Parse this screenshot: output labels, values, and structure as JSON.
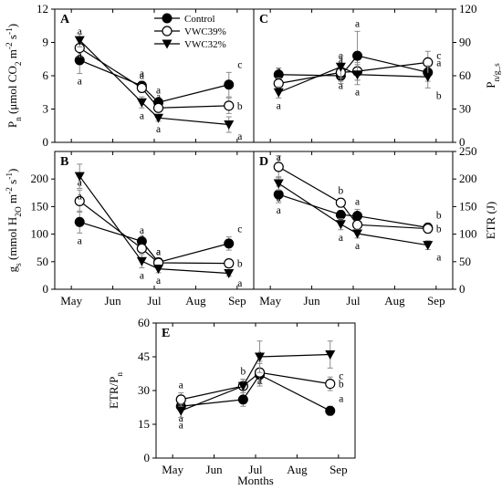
{
  "xlabel": "Months",
  "legend": {
    "entries": [
      {
        "name": "Control",
        "marker": "filled-circle"
      },
      {
        "name": "VWC39%",
        "marker": "open-circle"
      },
      {
        "name": "VWC32%",
        "marker": "filled-triangle-down"
      }
    ]
  },
  "chart_data": [
    {
      "id": "A",
      "type": "line",
      "panel_label": "A",
      "x": [
        "May",
        "Jul",
        "Jul",
        "Sep"
      ],
      "x_ticks": [
        "May",
        "Jun",
        "Jul",
        "Aug",
        "Sep"
      ],
      "x_values": [
        5.2,
        6.7,
        7.1,
        8.8
      ],
      "ylabel_left": "P_n (μmol CO_2 m^-2 s^-1)",
      "ylim": [
        0,
        12
      ],
      "yticks": [
        0,
        3,
        6,
        9,
        12
      ],
      "series": [
        {
          "name": "Control",
          "values": [
            7.4,
            5.1,
            3.6,
            5.2
          ],
          "err": [
            1.2,
            0.4,
            0.4,
            1.1
          ],
          "letters": [
            "a",
            "a",
            "a",
            "c"
          ]
        },
        {
          "name": "VWC39%",
          "values": [
            8.5,
            4.9,
            3.1,
            3.3
          ],
          "err": [
            0.8,
            0.4,
            0.3,
            0.7
          ],
          "letters": [
            "a",
            "a",
            "a",
            "b"
          ]
        },
        {
          "name": "VWC32%",
          "values": [
            9.2,
            3.6,
            2.2,
            1.6
          ],
          "err": [
            0.6,
            0.5,
            0.3,
            0.7
          ],
          "letters": [
            "a",
            "a",
            "a",
            "a"
          ]
        }
      ]
    },
    {
      "id": "C",
      "type": "line",
      "panel_label": "C",
      "x_ticks": [
        "May",
        "Jun",
        "Jul",
        "Aug",
        "Sep"
      ],
      "x_values": [
        5.2,
        6.7,
        7.1,
        8.8
      ],
      "ylabel_right": "P_n/g_s",
      "ylim": [
        0,
        120
      ],
      "yticks": [
        0,
        30,
        60,
        90,
        120
      ],
      "series": [
        {
          "name": "Control",
          "values": [
            61,
            60,
            78,
            63
          ],
          "err": [
            6,
            7,
            22,
            8
          ],
          "letters": [
            "a",
            "a",
            "a",
            "c"
          ]
        },
        {
          "name": "VWC39%",
          "values": [
            53,
            63,
            64,
            72
          ],
          "err": [
            5,
            8,
            8,
            10
          ],
          "letters": [
            "a",
            "a",
            "a",
            "a"
          ]
        },
        {
          "name": "VWC32%",
          "values": [
            45,
            68,
            61,
            59
          ],
          "err": [
            5,
            10,
            9,
            10
          ],
          "letters": [
            "a",
            "a",
            "a",
            "b"
          ]
        }
      ]
    },
    {
      "id": "B",
      "type": "line",
      "panel_label": "B",
      "x_ticks": [
        "May",
        "Jun",
        "Jul",
        "Aug",
        "Sep"
      ],
      "x_values": [
        5.2,
        6.7,
        7.1,
        8.8
      ],
      "ylabel_left": "g_s (mmol H_2O m^-2 s^-1)",
      "ylim": [
        0,
        250
      ],
      "yticks": [
        0,
        50,
        100,
        150,
        200
      ],
      "series": [
        {
          "name": "Control",
          "values": [
            122,
            87,
            49,
            83
          ],
          "err": [
            20,
            6,
            5,
            12
          ],
          "letters": [
            "a",
            "a",
            "a",
            "c"
          ]
        },
        {
          "name": "VWC39%",
          "values": [
            160,
            74,
            48,
            47
          ],
          "err": [
            20,
            7,
            6,
            6
          ],
          "letters": [
            "a",
            "a",
            "a",
            "b"
          ]
        },
        {
          "name": "VWC32%",
          "values": [
            205,
            51,
            37,
            29
          ],
          "err": [
            22,
            12,
            7,
            5
          ],
          "letters": [
            "a",
            "a",
            "a",
            "a"
          ]
        }
      ]
    },
    {
      "id": "D",
      "type": "line",
      "panel_label": "D",
      "x_ticks": [
        "May",
        "Jun",
        "Jul",
        "Aug",
        "Sep"
      ],
      "x_values": [
        5.2,
        6.7,
        7.1,
        8.8
      ],
      "ylabel_right": "ETR (J)",
      "ylim": [
        0,
        250
      ],
      "yticks": [
        0,
        50,
        100,
        150,
        200,
        250
      ],
      "series": [
        {
          "name": "Control",
          "values": [
            172,
            135,
            133,
            112
          ],
          "err": [
            15,
            8,
            12,
            8
          ],
          "letters": [
            "a",
            "a",
            "a",
            "b"
          ]
        },
        {
          "name": "VWC39%",
          "values": [
            222,
            157,
            117,
            110
          ],
          "err": [
            20,
            8,
            8,
            8
          ],
          "letters": [
            "a",
            "b",
            "a",
            "b"
          ]
        },
        {
          "name": "VWC32%",
          "values": [
            192,
            118,
            101,
            80
          ],
          "err": [
            12,
            10,
            8,
            8
          ],
          "letters": [
            "a",
            "a",
            "a",
            "a"
          ]
        }
      ]
    },
    {
      "id": "E",
      "type": "line",
      "panel_label": "E",
      "x_ticks": [
        "May",
        "Jun",
        "Jul",
        "Aug",
        "Sep"
      ],
      "x_values": [
        5.2,
        6.7,
        7.1,
        8.8
      ],
      "ylabel_left": "ETR/P_n",
      "ylim": [
        0,
        60
      ],
      "yticks": [
        0,
        15,
        30,
        45,
        60
      ],
      "series": [
        {
          "name": "Control",
          "values": [
            23,
            26,
            37,
            21
          ],
          "err": [
            2,
            3,
            5,
            2
          ],
          "letters": [
            "a",
            "a",
            "a",
            "a"
          ]
        },
        {
          "name": "VWC39%",
          "values": [
            26,
            32,
            38,
            33
          ],
          "err": [
            3,
            3,
            5,
            3
          ],
          "letters": [
            "a",
            "b",
            "a",
            "b"
          ]
        },
        {
          "name": "VWC32%",
          "values": [
            21,
            32,
            45,
            46
          ],
          "err": [
            3,
            3,
            7,
            6
          ],
          "letters": [
            "a",
            "b",
            "a",
            "c"
          ]
        }
      ]
    }
  ]
}
